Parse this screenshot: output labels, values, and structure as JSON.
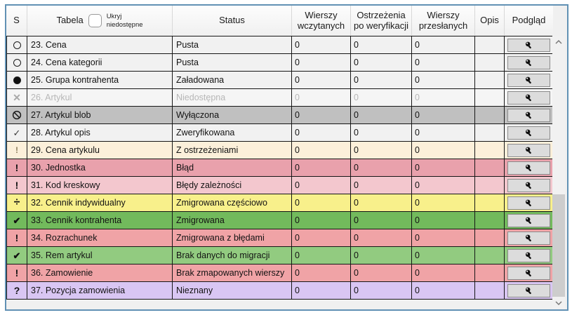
{
  "header": {
    "col_s": "S",
    "col_table": "Tabela",
    "col_status": "Status",
    "col_rows_loaded": "Wierszy wczytanych",
    "col_warnings": "Ostrzeżenia po weryfikacji",
    "col_rows_sent": "Wierszy przesłanych",
    "col_description": "Opis",
    "col_preview": "Podgląd",
    "hide_unavailable_label": "Ukryj\nniedostępne",
    "hide_unavailable_checked": false
  },
  "colors": {
    "panel_border": "#6191b4",
    "panel_background": "#f0f0f0",
    "grid_line": "#161616",
    "default_row": "#f1f1f1",
    "disabled_row": "#f5f5f5",
    "disabled_text": "#b7b7b7",
    "scrollbar_track": "#f1f1f1",
    "scrollbar_thumb": "#cdcdcd"
  },
  "rows": [
    {
      "icon": "empty-circle-icon",
      "table": "23. Cena",
      "status": "Pusta",
      "rows_loaded": "0",
      "warnings": "0",
      "rows_sent": "0",
      "description": "",
      "bg": "#f1f1f1",
      "disabled": false
    },
    {
      "icon": "empty-circle-icon",
      "table": "24. Cena kategorii",
      "status": "Pusta",
      "rows_loaded": "0",
      "warnings": "0",
      "rows_sent": "0",
      "description": "",
      "bg": "#f1f1f1",
      "disabled": false
    },
    {
      "icon": "filled-circle-icon",
      "table": "25. Grupa kontrahenta",
      "status": "Załadowana",
      "rows_loaded": "0",
      "warnings": "0",
      "rows_sent": "0",
      "description": "",
      "bg": "#f1f1f1",
      "disabled": false
    },
    {
      "icon": "unavailable-cross-icon",
      "table": "26. Artykul",
      "status": "Niedostępna",
      "rows_loaded": "0",
      "warnings": "0",
      "rows_sent": "0",
      "description": "",
      "bg": "#f5f5f5",
      "disabled": true
    },
    {
      "icon": "no-entry-icon",
      "table": "27. Artykul blob",
      "status": "Wyłączona",
      "rows_loaded": "0",
      "warnings": "0",
      "rows_sent": "0",
      "description": "",
      "bg": "#c0c0c0",
      "disabled": false
    },
    {
      "icon": "verified-check-icon",
      "table": "28. Artykul opis",
      "status": "Zweryfikowana",
      "rows_loaded": "0",
      "warnings": "0",
      "rows_sent": "0",
      "description": "",
      "bg": "#f1f1f1",
      "disabled": false
    },
    {
      "icon": "warning-exclamation-icon",
      "table": "29. Cena artykulu",
      "status": "Z ostrzeżeniami",
      "rows_loaded": "0",
      "warnings": "0",
      "rows_sent": "0",
      "description": "",
      "bg": "#fcf0da",
      "disabled": false
    },
    {
      "icon": "error-exclamation-icon",
      "table": "30. Jednostka",
      "status": "Błąd",
      "rows_loaded": "0",
      "warnings": "0",
      "rows_sent": "0",
      "description": "",
      "bg": "#e9a1ac",
      "disabled": false
    },
    {
      "icon": "error-exclamation-icon",
      "table": "31. Kod kreskowy",
      "status": "Błędy zależności",
      "rows_loaded": "0",
      "warnings": "0",
      "rows_sent": "0",
      "description": "",
      "bg": "#f3c7ce",
      "disabled": false
    },
    {
      "icon": "partial-division-icon",
      "table": "32. Cennik indywidualny",
      "status": "Zmigrowana częściowo",
      "rows_loaded": "0",
      "warnings": "0",
      "rows_sent": "0",
      "description": "",
      "bg": "#f8f08b",
      "disabled": false
    },
    {
      "icon": "migrated-check-icon",
      "table": "33. Cennik kontrahenta",
      "status": "Zmigrowana",
      "rows_loaded": "0",
      "warnings": "0",
      "rows_sent": "0",
      "description": "",
      "bg": "#72ba5c",
      "disabled": false
    },
    {
      "icon": "error-exclamation-icon",
      "table": "34. Rozrachunek",
      "status": "Zmigrowana z błędami",
      "rows_loaded": "0",
      "warnings": "0",
      "rows_sent": "0",
      "description": "",
      "bg": "#f0a3a6",
      "disabled": false
    },
    {
      "icon": "migrated-check-icon",
      "table": "35. Rem artykul",
      "status": "Brak danych do migracji",
      "rows_loaded": "0",
      "warnings": "0",
      "rows_sent": "0",
      "description": "",
      "bg": "#92cb80",
      "disabled": false
    },
    {
      "icon": "error-exclamation-icon",
      "table": "36. Zamowienie",
      "status": "Brak zmapowanych wierszy",
      "rows_loaded": "0",
      "warnings": "0",
      "rows_sent": "0",
      "description": "",
      "bg": "#f0a3a6",
      "disabled": false
    },
    {
      "icon": "unknown-question-icon",
      "table": "37. Pozycja zamowienia",
      "status": "Nieznany",
      "rows_loaded": "0",
      "warnings": "0",
      "rows_sent": "0",
      "description": "",
      "bg": "#d9c6f3",
      "disabled": false
    }
  ]
}
